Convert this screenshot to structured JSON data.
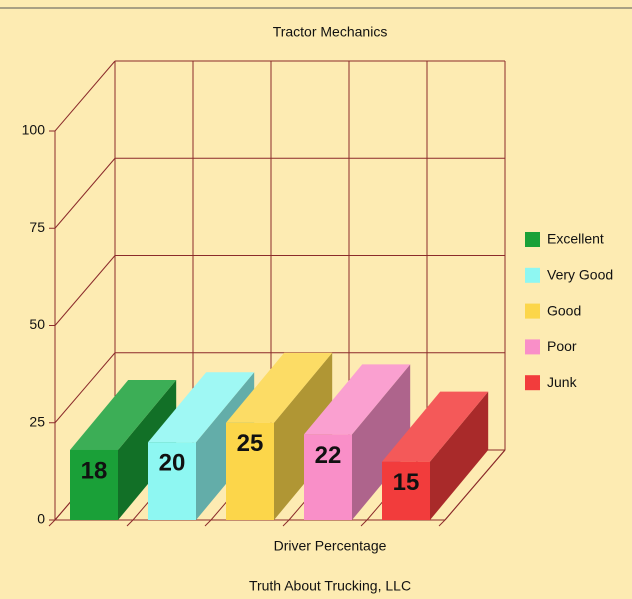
{
  "chart_data": {
    "type": "bar3d",
    "title": "Tractor Mechanics",
    "x_label": "Driver Percentage",
    "footer": "Truth About Trucking, LLC",
    "categories": [
      "Excellent",
      "Very Good",
      "Good",
      "Poor",
      "Junk"
    ],
    "values": [
      18,
      20,
      25,
      22,
      15
    ],
    "colors": [
      "#1aa038",
      "#8ef7f2",
      "#fcd64a",
      "#f98fc8",
      "#f23c3c"
    ],
    "ylim": [
      0,
      100
    ],
    "yticks": [
      0,
      25,
      50,
      75,
      100
    ],
    "grid": true,
    "legend": "right"
  }
}
